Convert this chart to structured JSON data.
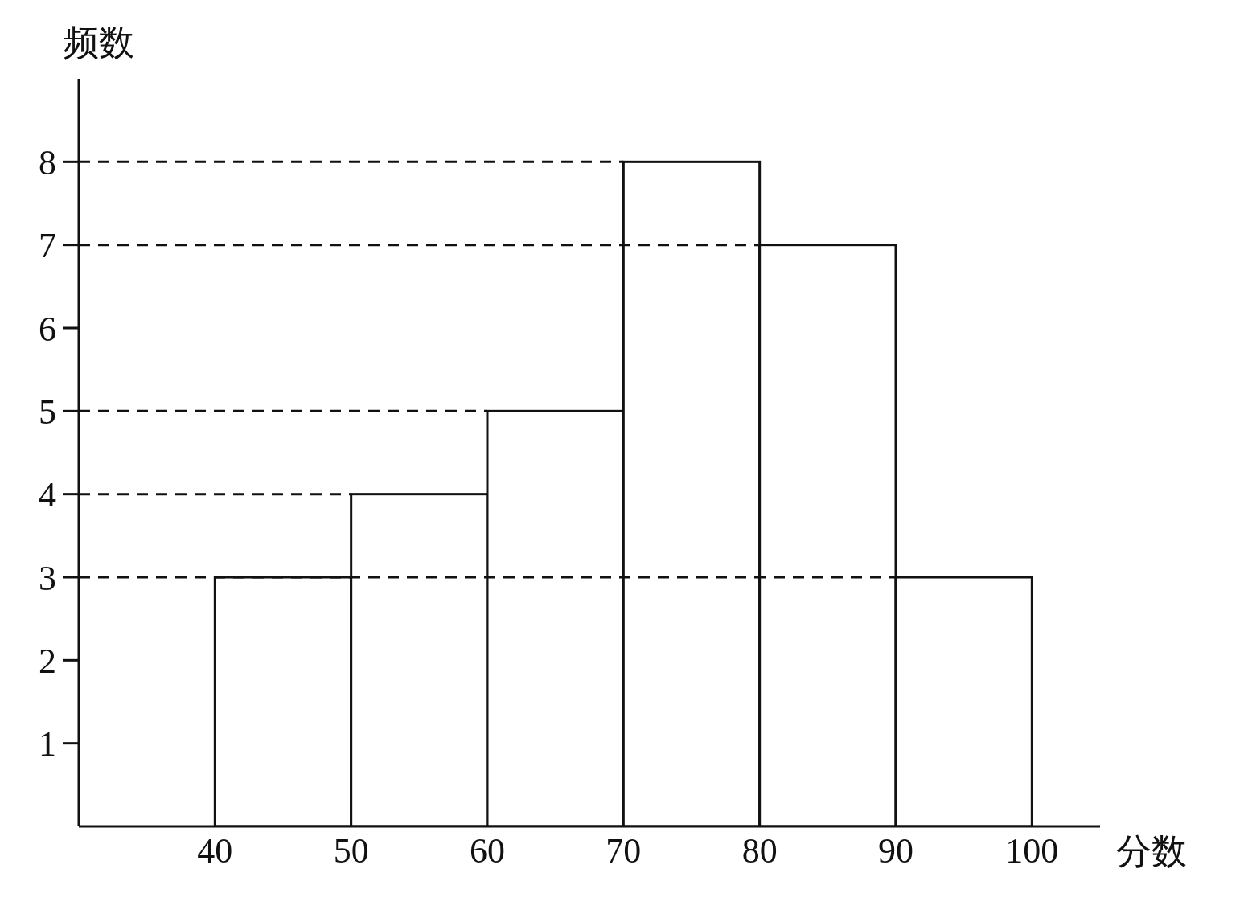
{
  "chart_data": {
    "type": "histogram",
    "xlabel": "分数",
    "ylabel": "频数",
    "bins": [
      40,
      50,
      60,
      70,
      80,
      90,
      100
    ],
    "values": [
      3,
      4,
      5,
      8,
      7,
      3
    ],
    "color": "#ffffff",
    "xlim": [
      30,
      105
    ],
    "xticks": [
      40,
      50,
      60,
      70,
      80,
      90,
      100
    ],
    "ylim": [
      0,
      9
    ],
    "yticks": [
      1,
      2,
      3,
      4,
      5,
      6,
      7,
      8
    ],
    "grid": false,
    "legend": false,
    "ref_lines": [
      {
        "axis": "y",
        "value": 8,
        "line_style": "dashed"
      },
      {
        "axis": "y",
        "value": 7,
        "line_style": "dashed"
      },
      {
        "axis": "y",
        "value": 5,
        "line_style": "dashed"
      },
      {
        "axis": "y",
        "value": 4,
        "line_style": "dashed"
      },
      {
        "axis": "y",
        "value": 3,
        "line_style": "dashed"
      }
    ]
  }
}
